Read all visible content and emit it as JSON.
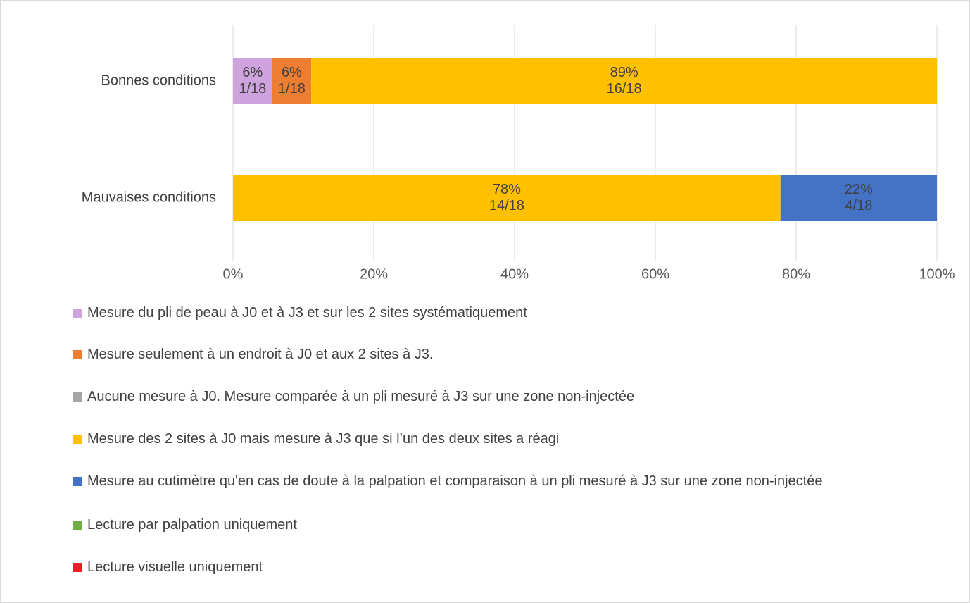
{
  "chart_data": {
    "type": "stacked-bar-horizontal",
    "categories": [
      "Bonnes conditions",
      "Mauvaises conditions"
    ],
    "series": [
      {
        "name": "Mesure du pli de peau à J0 et à J3 et sur les 2 sites systématiquement",
        "color": "#cfa3de",
        "values": [
          5.56,
          0
        ],
        "value_labels": [
          [
            "6%",
            "1/18"
          ],
          null
        ]
      },
      {
        "name": "Mesure seulement à un endroit à J0 et aux 2 sites à J3.",
        "color": "#ed7d31",
        "values": [
          5.56,
          0
        ],
        "value_labels": [
          [
            "6%",
            "1/18"
          ],
          null
        ]
      },
      {
        "name": "Aucune mesure à J0. Mesure comparée à un pli mesuré à J3 sur une zone non-injectée",
        "color": "#a5a5a5",
        "values": [
          0,
          0
        ],
        "value_labels": [
          null,
          null
        ]
      },
      {
        "name": "Mesure des 2 sites à J0 mais mesure à J3 que si l’un des deux sites a réagi",
        "color": "#ffc000",
        "values": [
          88.89,
          77.78
        ],
        "value_labels": [
          [
            "89%",
            "16/18"
          ],
          [
            "78%",
            "14/18"
          ]
        ]
      },
      {
        "name": "Mesure au cutimètre qu'en cas de doute à la palpation et comparaison à un pli mesuré à J3 sur une zone non-injectée",
        "color": "#4472c4",
        "values": [
          0,
          22.22
        ],
        "value_labels": [
          null,
          [
            "22%",
            "4/18"
          ]
        ]
      },
      {
        "name": "Lecture par palpation uniquement",
        "color": "#70ad47",
        "values": [
          0,
          0
        ],
        "value_labels": [
          null,
          null
        ]
      },
      {
        "name": "Lecture visuelle uniquement",
        "color": "#e8202a",
        "values": [
          0,
          0
        ],
        "value_labels": [
          null,
          null
        ]
      }
    ],
    "xlim": [
      0,
      100
    ],
    "xticks": [
      {
        "value": 0,
        "label": "0%"
      },
      {
        "value": 20,
        "label": "20%"
      },
      {
        "value": 40,
        "label": "40%"
      },
      {
        "value": 60,
        "label": "60%"
      },
      {
        "value": 80,
        "label": "80%"
      },
      {
        "value": 100,
        "label": "100%"
      }
    ],
    "grid": true
  }
}
